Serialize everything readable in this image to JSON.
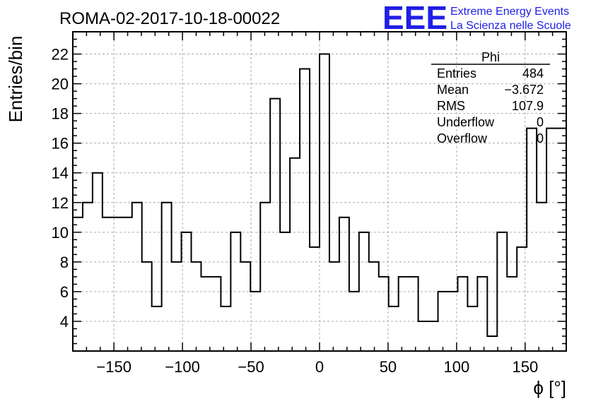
{
  "chart_data": {
    "type": "bar",
    "histogram": true,
    "title": "ROMA-02-2017-10-18-00022",
    "xlabel": "ϕ [°]",
    "ylabel": "Entries/bin",
    "xlim": [
      -180,
      180
    ],
    "ylim": [
      2,
      23.5
    ],
    "grid": true,
    "xticks": [
      -150,
      -100,
      -50,
      0,
      50,
      100,
      150
    ],
    "yticks": [
      4,
      6,
      8,
      10,
      12,
      14,
      16,
      18,
      20,
      22
    ],
    "bin_width": 7.2,
    "values": [
      11,
      12,
      14,
      11,
      11,
      11,
      12,
      8,
      5,
      12,
      8,
      10,
      8,
      7,
      7,
      5,
      10,
      8,
      6,
      12,
      19,
      10,
      15,
      21,
      9,
      22,
      8,
      11,
      6,
      10,
      8,
      7,
      5,
      7,
      7,
      4,
      4,
      6,
      6,
      7,
      5,
      7,
      3,
      10,
      7,
      9,
      17,
      12,
      17,
      17
    ],
    "legend": "top-right",
    "stats_box": {
      "name": "Phi",
      "rows": [
        {
          "label": "Entries",
          "value": "484"
        },
        {
          "label": "Mean",
          "value": "−3.672"
        },
        {
          "label": "RMS",
          "value": "107.9"
        },
        {
          "label": "Underflow",
          "value": "0"
        },
        {
          "label": "Overflow",
          "value": "0"
        }
      ]
    }
  },
  "logo": {
    "mark": "EEE",
    "line1": "Extreme Energy Events",
    "line2": "La Scienza nelle Scuole",
    "color": "#1f1fe6"
  },
  "colors": {
    "line": "#000000",
    "grid": "#aaaaaa",
    "logo": "#1f1fe6"
  }
}
